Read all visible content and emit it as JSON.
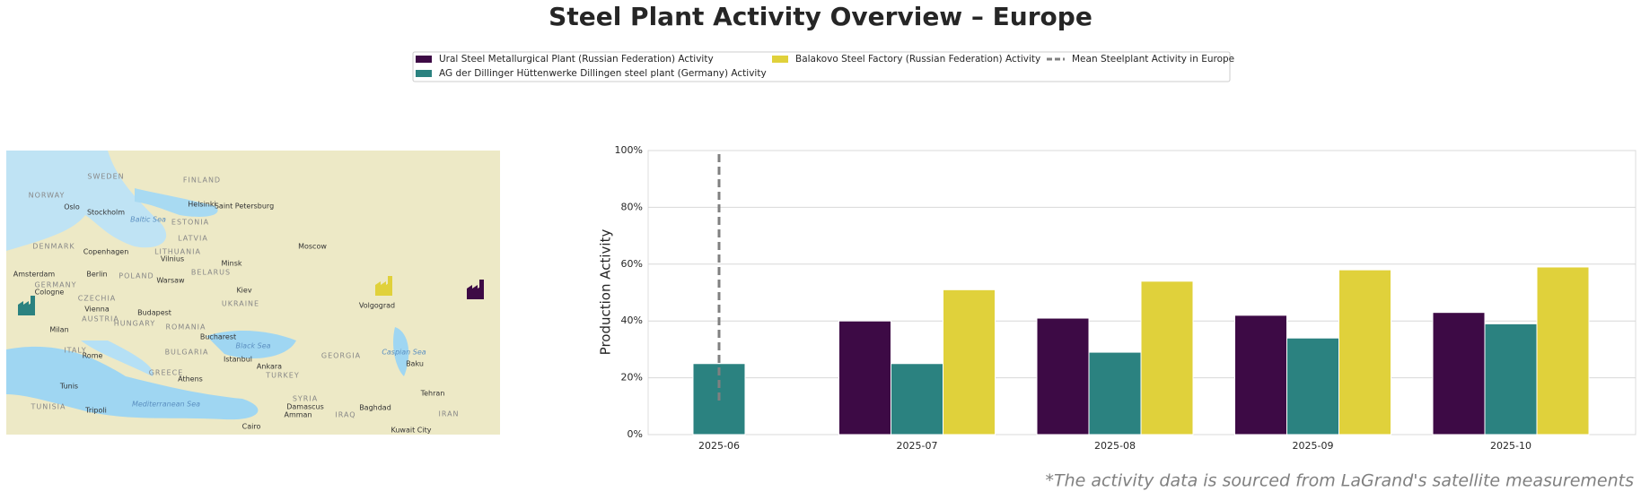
{
  "chart_data": {
    "type": "bar",
    "title": "Steel Plant Activity Overview – Europe",
    "y_label": "Production Activity",
    "footnote": "*The activity data is sourced from LaGrand's satellite measurements",
    "categories": [
      "2025-06",
      "2025-07",
      "2025-08",
      "2025-09",
      "2025-10"
    ],
    "series": [
      {
        "name": "Ural Steel Metallurgical Plant (Russian Federation) Activity",
        "color": "#3d0a45",
        "values": [
          null,
          40,
          41,
          42,
          43
        ]
      },
      {
        "name": "AG der Dillinger Hüttenwerke Dillingen steel plant (Germany) Activity",
        "color": "#2b8280",
        "values": [
          25,
          25,
          29,
          34,
          39
        ]
      },
      {
        "name": "Balakovo Steel Factory (Russian Federation) Activity",
        "color": "#e0d13b",
        "values": [
          null,
          51,
          54,
          58,
          59
        ]
      }
    ],
    "mean_line": {
      "name": "Mean Steelplant Activity in Europe",
      "color": "#808080",
      "x": "2025-06",
      "values": [
        12,
        100
      ]
    },
    "ylim": [
      0,
      100
    ],
    "yticks": [
      {
        "value": 0,
        "label": "0%"
      },
      {
        "value": 20,
        "label": "20%"
      },
      {
        "value": 40,
        "label": "40%"
      },
      {
        "value": 60,
        "label": "60%"
      },
      {
        "value": 80,
        "label": "80%"
      },
      {
        "value": 100,
        "label": "100%"
      }
    ],
    "grid": true,
    "map": {
      "labels": [
        "SWEDEN",
        "FINLAND",
        "NORWAY",
        "Oslo",
        "Stockholm",
        "Helsinki",
        "Saint Petersburg",
        "ESTONIA",
        "Baltic Sea",
        "DENMARK",
        "Copenhagen",
        "LATVIA",
        "LITHUANIA",
        "Vilnius",
        "Moscow",
        "Minsk",
        "BELARUS",
        "Amsterdam",
        "Berlin",
        "POLAND",
        "Warsaw",
        "GERMANY",
        "Cologne",
        "Kiev",
        "CZECHIA",
        "UKRAINE",
        "Volgograd",
        "Vienna",
        "Budapest",
        "AUSTRIA",
        "HUNGARY",
        "ROMANIA",
        "Milan",
        "Bucharest",
        "Black Sea",
        "ITALY",
        "Rome",
        "BULGARIA",
        "Istanbul",
        "GEORGIA",
        "Caspian Sea",
        "Ankara",
        "Baku",
        "GREECE",
        "Athens",
        "TURKEY",
        "Tunis",
        "SYRIA",
        "Tehran",
        "TUNISIA",
        "Tripoli",
        "Mediterranean Sea",
        "Damascus",
        "Baghdad",
        "IRAQ",
        "Amman",
        "IRAN",
        "Cairo",
        "Kuwait City"
      ]
    }
  }
}
